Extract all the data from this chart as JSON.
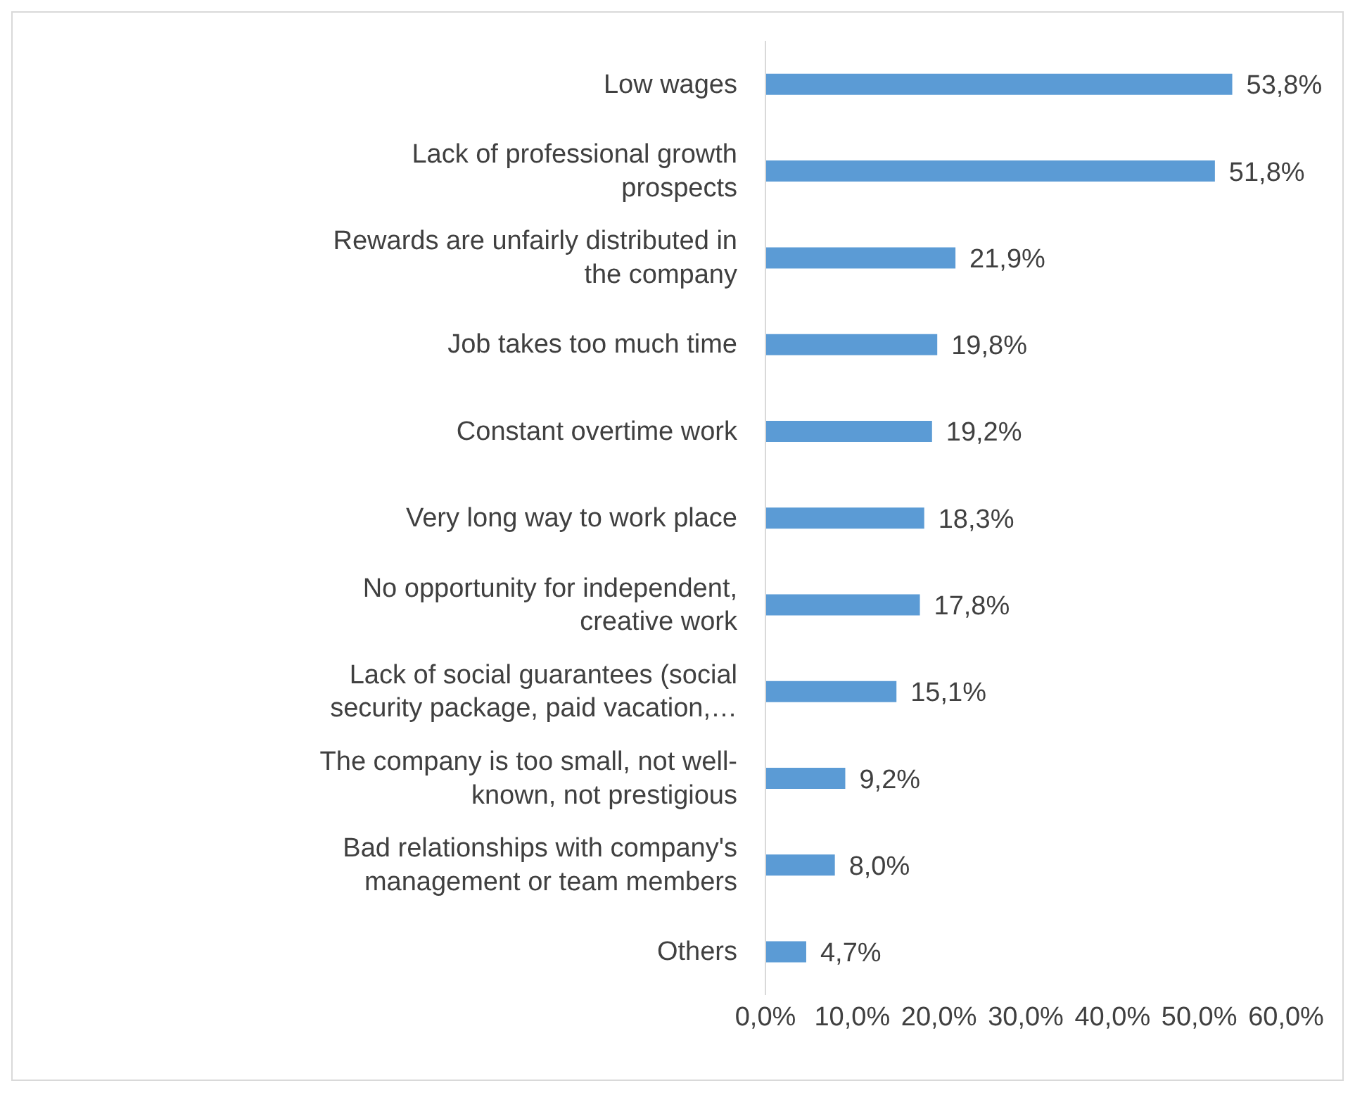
{
  "chart_data": {
    "type": "bar",
    "orientation": "horizontal",
    "categories": [
      "Low wages",
      "Lack of professional growth prospects",
      "Rewards are unfairly distributed in the company",
      "Job takes too much time",
      "Constant overtime work",
      "Very long way to work place",
      "No opportunity for independent, creative work",
      "Lack of social guarantees (social security package, paid vacation,…",
      "The company is too small, not well-known, not prestigious",
      "Bad relationships with company's management or team members",
      "Others"
    ],
    "values": [
      53.8,
      51.8,
      21.9,
      19.8,
      19.2,
      18.3,
      17.8,
      15.1,
      9.2,
      8.0,
      4.7
    ],
    "value_labels": [
      "53,8%",
      "51,8%",
      "21,9%",
      "19,8%",
      "19,2%",
      "18,3%",
      "17,8%",
      "15,1%",
      "9,2%",
      "8,0%",
      "4,7%"
    ],
    "color": "#5b9bd5",
    "xlim": [
      0,
      60
    ],
    "xticks": [
      {
        "value": 0,
        "label": "0,0%"
      },
      {
        "value": 10,
        "label": "10,0%"
      },
      {
        "value": 20,
        "label": "20,0%"
      },
      {
        "value": 30,
        "label": "30,0%"
      },
      {
        "value": 40,
        "label": "40,0%"
      },
      {
        "value": 50,
        "label": "50,0%"
      },
      {
        "value": 60,
        "label": "60,0%"
      }
    ],
    "grid": false,
    "legend": false
  }
}
